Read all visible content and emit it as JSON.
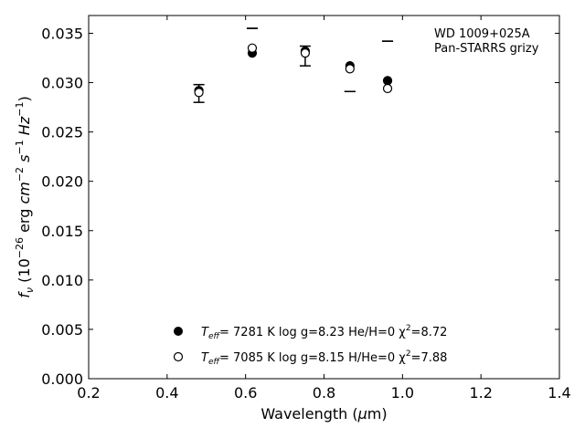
{
  "chart_data": {
    "type": "scatter",
    "annotation": [
      "WD 1009+025A",
      "Pan-STARRS grizy"
    ],
    "xlabel": "Wavelength (μm)",
    "ylabel": "fν (10⁻²⁶ erg cm⁻² s⁻¹ Hz⁻¹)",
    "xlim": [
      0.2,
      1.4
    ],
    "ylim": [
      0.0,
      0.0368
    ],
    "xticks": [
      "0.2",
      "0.4",
      "0.6",
      "0.8",
      "1.0",
      "1.2",
      "1.4"
    ],
    "yticks": [
      "0.000",
      "0.005",
      "0.010",
      "0.015",
      "0.020",
      "0.025",
      "0.030",
      "0.035"
    ],
    "grid": false,
    "legend_position": "bottom-center",
    "observed": [
      {
        "x": 0.481,
        "y": 0.0289,
        "err": 0.0009
      },
      {
        "x": 0.617,
        "y": 0.0355,
        "err": 0.0
      },
      {
        "x": 0.752,
        "y": 0.0327,
        "err": 0.001
      },
      {
        "x": 0.866,
        "y": 0.0291,
        "err": 0.0
      },
      {
        "x": 0.962,
        "y": 0.0342,
        "err": 0.0
      }
    ],
    "series": [
      {
        "name": "Teff= 7281 K log g=8.23 He/H=0 χ²=8.72",
        "marker": "filled-circle",
        "color": "#000000",
        "x": [
          0.481,
          0.617,
          0.752,
          0.866,
          0.962
        ],
        "y": [
          0.0292,
          0.033,
          0.0332,
          0.0317,
          0.0302
        ]
      },
      {
        "name": "Teff= 7085 K log g=8.15 H/He=0 χ²=7.88",
        "marker": "open-circle",
        "color": "#000000",
        "x": [
          0.481,
          0.617,
          0.752,
          0.866,
          0.962
        ],
        "y": [
          0.029,
          0.0335,
          0.033,
          0.0314,
          0.0294
        ]
      }
    ],
    "legend": [
      {
        "teff_label": "T",
        "teff_sub": "eff",
        "rest": "=  7281 K  log g=8.23  He/H=0  χ",
        "chi_sup": "2",
        "chi_rest": "=8.72"
      },
      {
        "teff_label": "T",
        "teff_sub": "eff",
        "rest": "=  7085 K  log g=8.15  H/He=0  χ",
        "chi_sup": "2",
        "chi_rest": "=7.88"
      }
    ]
  }
}
